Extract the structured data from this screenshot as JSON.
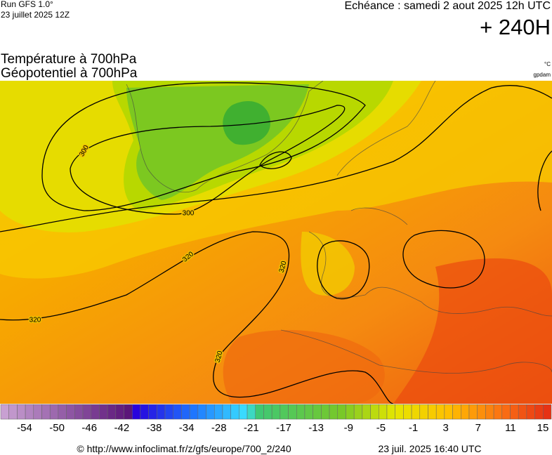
{
  "header": {
    "run": "Run GFS 1.0°",
    "run_date": "23 juillet 2025 12Z",
    "valid": "Echéance : samedi 2 aout 2025 12h UTC",
    "lead": "+ 240H"
  },
  "titles": {
    "line1": "Température à 700hPa",
    "line2": "Géopotentiel à 700hPa",
    "unit1": "°C",
    "unit2": "gpdam"
  },
  "map": {
    "contour_labels": [
      "300",
      "300",
      "320",
      "320",
      "320",
      "320"
    ]
  },
  "scale": {
    "labels": [
      -54,
      -50,
      -46,
      -42,
      -38,
      -34,
      -28,
      -21,
      -17,
      -13,
      -9,
      -5,
      -1,
      3,
      7,
      11,
      15
    ]
  },
  "footer": {
    "url": "© http://www.infoclimat.fr/z/gfs/europe/700_2/240",
    "date": "23 juil. 2025 16:40 UTC"
  }
}
